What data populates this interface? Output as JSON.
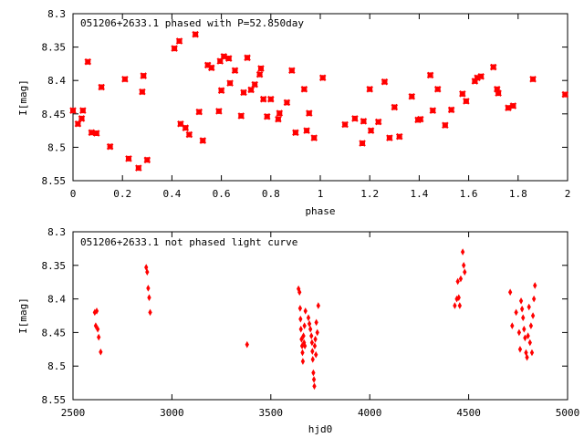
{
  "chart_data": [
    {
      "type": "scatter",
      "title": "051206+2633.1 phased with P=52.850day",
      "xlabel": "phase",
      "ylabel": "I[mag]",
      "xlim": [
        0,
        2
      ],
      "ylim": [
        8.55,
        8.3
      ],
      "y_inverted": true,
      "xticks": [
        "0",
        "0.2",
        "0.4",
        "0.6",
        "0.8",
        "1",
        "1.2",
        "1.4",
        "1.6",
        "1.8",
        "2"
      ],
      "yticks": [
        "8.3",
        "8.35",
        "8.4",
        "8.45",
        "8.5",
        "8.55"
      ],
      "xtick_values": [
        0,
        0.2,
        0.4,
        0.6,
        0.8,
        1.0,
        1.2,
        1.4,
        1.6,
        1.8,
        2.0
      ],
      "ytick_values": [
        8.3,
        8.35,
        8.4,
        8.45,
        8.5,
        8.55
      ],
      "marker": "square",
      "color": "#ff0000",
      "grid": false,
      "x": [
        0.0,
        0.02,
        0.035,
        0.04,
        0.06,
        0.075,
        0.095,
        0.115,
        0.15,
        0.21,
        0.225,
        0.265,
        0.28,
        0.285,
        0.3,
        0.41,
        0.43,
        0.435,
        0.455,
        0.47,
        0.495,
        0.51,
        0.525,
        0.545,
        0.56,
        0.59,
        0.595,
        0.6,
        0.61,
        0.63,
        0.635,
        0.655,
        0.68,
        0.69,
        0.705,
        0.72,
        0.735,
        0.755,
        0.76,
        0.77,
        0.785,
        0.8,
        0.83,
        0.835,
        0.865,
        0.885,
        0.9,
        0.935,
        0.945,
        0.955,
        0.975,
        1.01,
        1.1,
        1.14,
        1.17,
        1.175,
        1.2,
        1.205,
        1.235,
        1.26,
        1.28,
        1.3,
        1.32,
        1.37,
        1.395,
        1.405,
        1.445,
        1.455,
        1.475,
        1.505,
        1.53,
        1.575,
        1.59,
        1.625,
        1.635,
        1.65,
        1.7,
        1.715,
        1.72,
        1.76,
        1.78,
        1.86,
        1.99
      ],
      "y": [
        8.445,
        8.465,
        8.457,
        8.445,
        8.372,
        8.478,
        8.479,
        8.41,
        8.499,
        8.398,
        8.517,
        8.531,
        8.417,
        8.393,
        8.519,
        8.352,
        8.341,
        8.465,
        8.471,
        8.481,
        8.331,
        8.447,
        8.49,
        8.377,
        8.381,
        8.446,
        8.371,
        8.415,
        8.364,
        8.367,
        8.404,
        8.385,
        8.453,
        8.418,
        8.366,
        8.414,
        8.406,
        8.391,
        8.382,
        8.428,
        8.454,
        8.428,
        8.458,
        8.449,
        8.433,
        8.385,
        8.478,
        8.413,
        8.475,
        8.449,
        8.486,
        8.396,
        8.466,
        8.457,
        8.494,
        8.461,
        8.413,
        8.475,
        8.462,
        8.402,
        8.486,
        8.44,
        8.484,
        8.424,
        8.459,
        8.458,
        8.392,
        8.445,
        8.413,
        8.467,
        8.444,
        8.42,
        8.431,
        8.401,
        8.396,
        8.394,
        8.38,
        8.413,
        8.419,
        8.441,
        8.438,
        8.398,
        8.421
      ]
    },
    {
      "type": "scatter",
      "title": "051206+2633.1 not phased light curve",
      "xlabel": "hjd0",
      "ylabel": "I[mag]",
      "xlim": [
        2500,
        5000
      ],
      "ylim": [
        8.55,
        8.3
      ],
      "y_inverted": true,
      "xticks": [
        "2500",
        "3000",
        "3500",
        "4000",
        "4500",
        "5000"
      ],
      "yticks": [
        "8.3",
        "8.35",
        "8.4",
        "8.45",
        "8.5",
        "8.55"
      ],
      "xtick_values": [
        2500,
        3000,
        3500,
        4000,
        4500,
        5000
      ],
      "ytick_values": [
        8.3,
        8.35,
        8.4,
        8.45,
        8.5,
        8.55
      ],
      "marker": "diamond",
      "color": "#ff0000",
      "grid": false,
      "x": [
        2610,
        2615,
        2620,
        2625,
        2630,
        2640,
        2870,
        2875,
        2880,
        2885,
        2890,
        3380,
        3640,
        3645,
        3648,
        3650,
        3652,
        3655,
        3658,
        3660,
        3662,
        3665,
        3668,
        3670,
        3672,
        3675,
        3690,
        3695,
        3700,
        3705,
        3708,
        3710,
        3712,
        3715,
        3718,
        3720,
        3722,
        3725,
        3728,
        3730,
        3735,
        3740,
        4430,
        4440,
        4445,
        4450,
        4455,
        4460,
        4470,
        4475,
        4480,
        4710,
        4720,
        4740,
        4755,
        4760,
        4765,
        4770,
        4775,
        4780,
        4785,
        4790,
        4795,
        4800,
        4805,
        4810,
        4815,
        4820,
        4825,
        4830,
        4835
      ],
      "y": [
        8.42,
        8.44,
        8.418,
        8.445,
        8.457,
        8.479,
        8.353,
        8.36,
        8.384,
        8.398,
        8.42,
        8.468,
        8.385,
        8.39,
        8.414,
        8.43,
        8.445,
        8.46,
        8.47,
        8.48,
        8.493,
        8.455,
        8.465,
        8.44,
        8.47,
        8.418,
        8.428,
        8.437,
        8.445,
        8.455,
        8.465,
        8.478,
        8.49,
        8.51,
        8.52,
        8.53,
        8.47,
        8.46,
        8.483,
        8.435,
        8.45,
        8.41,
        8.41,
        8.4,
        8.374,
        8.398,
        8.41,
        8.37,
        8.33,
        8.35,
        8.36,
        8.39,
        8.44,
        8.42,
        8.45,
        8.475,
        8.403,
        8.415,
        8.428,
        8.445,
        8.458,
        8.48,
        8.487,
        8.455,
        8.412,
        8.465,
        8.44,
        8.48,
        8.425,
        8.4,
        8.38
      ]
    }
  ]
}
